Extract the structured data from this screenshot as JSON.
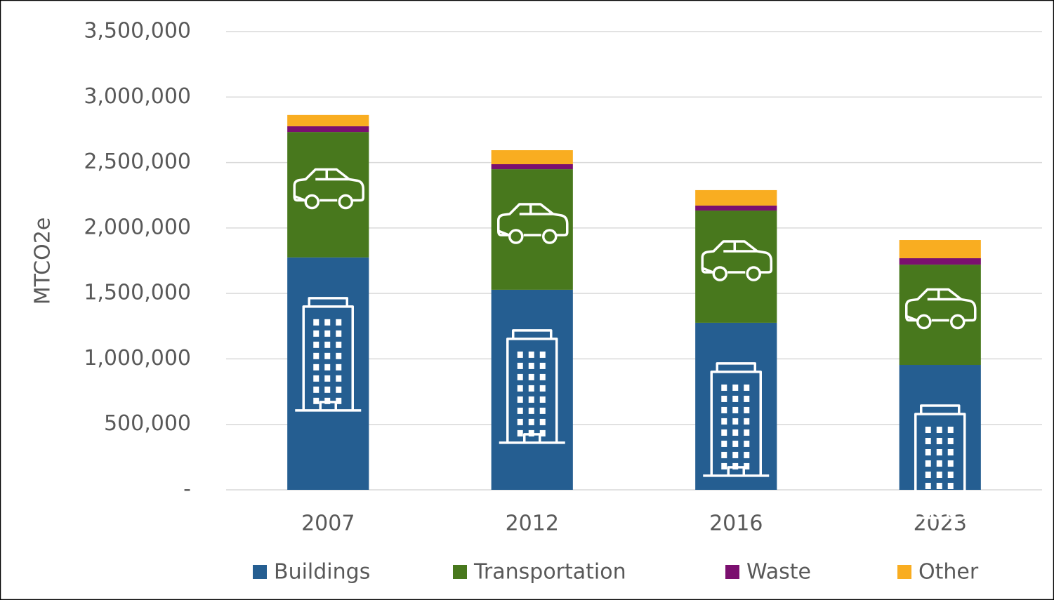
{
  "chart_data": {
    "type": "stacked_bar",
    "y_axis_label": "MTCO2e",
    "categories": [
      "2007",
      "2012",
      "2016",
      "2023"
    ],
    "series": [
      {
        "name": "Buildings",
        "color": "#255e91",
        "values": [
          1775000,
          1528000,
          1276000,
          954000
        ]
      },
      {
        "name": "Transportation",
        "color": "#48781d",
        "values": [
          958000,
          921000,
          857000,
          766000
        ]
      },
      {
        "name": "Waste",
        "color": "#7b0f6f",
        "values": [
          44000,
          38000,
          38000,
          49000
        ]
      },
      {
        "name": "Other",
        "color": "#f9ad21",
        "values": [
          86000,
          107000,
          118000,
          139000
        ]
      }
    ],
    "ylim": [
      0,
      3500000
    ],
    "yticks": [
      {
        "value": 0,
        "label": "-"
      },
      {
        "value": 500000,
        "label": "500,000"
      },
      {
        "value": 1000000,
        "label": "1,000,000"
      },
      {
        "value": 1500000,
        "label": "1,500,000"
      },
      {
        "value": 2000000,
        "label": "2,000,000"
      },
      {
        "value": 2500000,
        "label": "2,500,000"
      },
      {
        "value": 3000000,
        "label": "3,000,000"
      },
      {
        "value": 3500000,
        "label": "3,500,000"
      }
    ],
    "grid": true,
    "legend": "bottom"
  }
}
